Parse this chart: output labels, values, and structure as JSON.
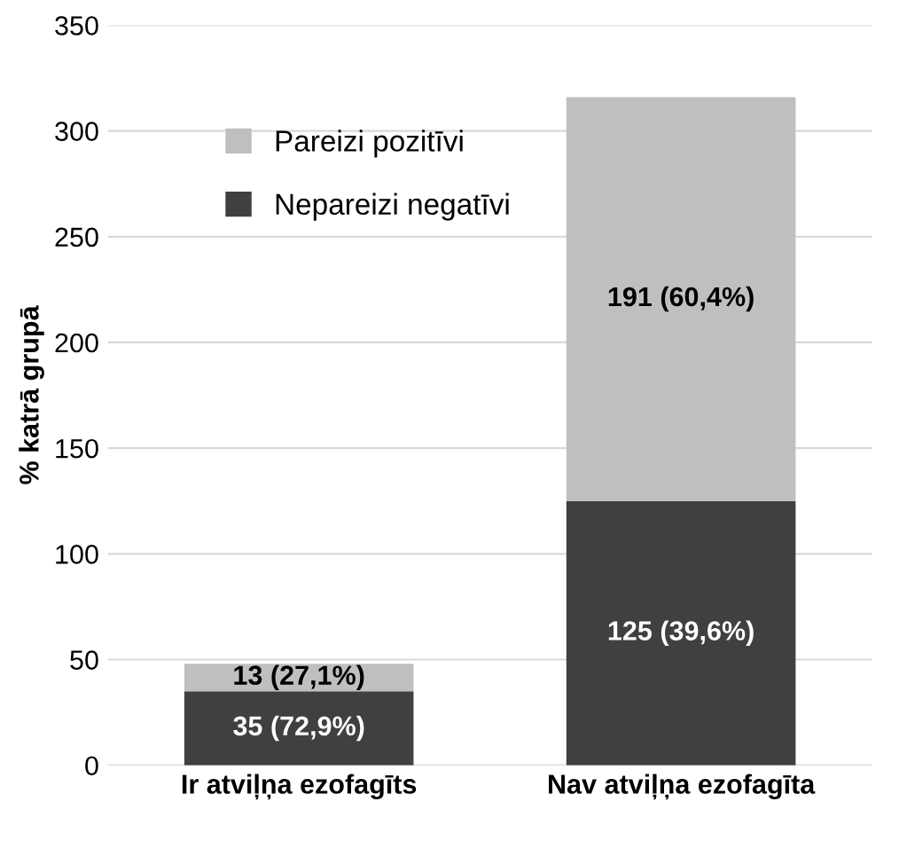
{
  "chart_data": {
    "type": "bar",
    "stacked": true,
    "ylabel": "% katrā grupā",
    "categories": [
      "Ir atviļņa ezofagīts",
      "Nav atviļņa ezofagīta"
    ],
    "series": [
      {
        "name": "Nepareizi negatīvi",
        "color": "#404040",
        "values": [
          35,
          125
        ],
        "value_labels": [
          "35 (72,9%)",
          "125 (39,6%)"
        ]
      },
      {
        "name": "Pareizi pozitīvi",
        "color": "#bfbfbf",
        "values": [
          13,
          191
        ],
        "value_labels": [
          "13 (27,1%)",
          "191 (60,4%)"
        ]
      }
    ],
    "ylim": [
      0,
      350
    ],
    "yticks": [
      0,
      50,
      100,
      150,
      200,
      250,
      300,
      350
    ],
    "grid": "y",
    "legend": "top left"
  }
}
